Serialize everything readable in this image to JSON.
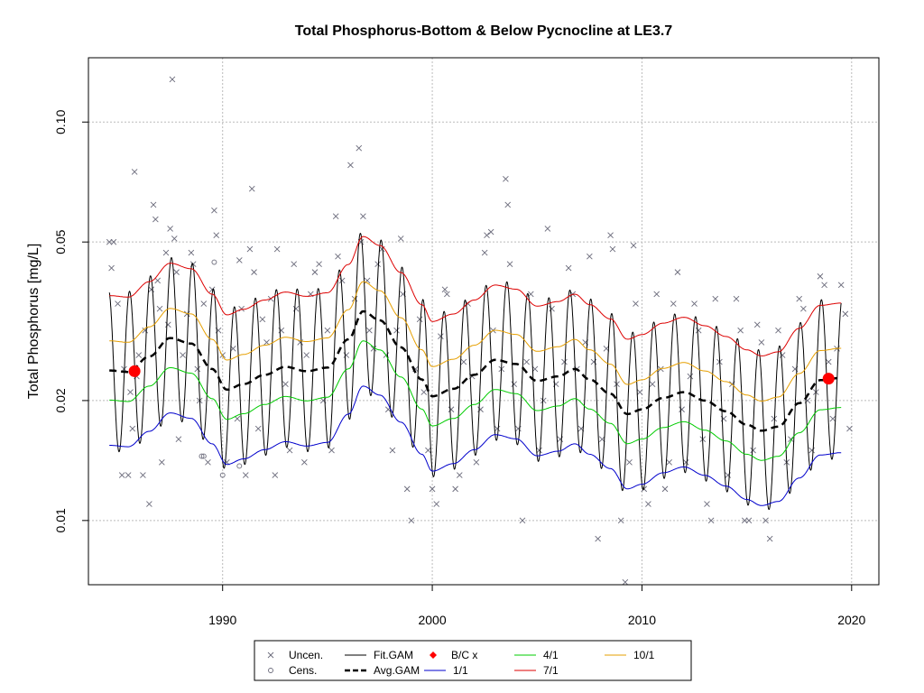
{
  "chart_data": {
    "type": "line",
    "title": "Total Phosphorus-Bottom & Below Pycnocline at LE3.7",
    "xlabel": "",
    "ylabel": "Total Phosphorus [mg/L]",
    "y_scale": "log",
    "xlim": [
      1983.6,
      2021.3
    ],
    "ylim": [
      0.0069,
      0.145
    ],
    "x_ticks": [
      1990,
      2000,
      2010,
      2020
    ],
    "x_tick_labels": [
      "1990",
      "2000",
      "2010",
      "2020"
    ],
    "y_ticks": [
      0.01,
      0.02,
      0.05,
      0.1
    ],
    "y_tick_labels": [
      "0.01",
      "0.02",
      "0.05",
      "0.10"
    ],
    "grid": true,
    "legend_position": "bottom",
    "colors": {
      "fit_gam": "#000000",
      "avg_gam": "#000000",
      "bc": "#ff0000",
      "p1_1": "#0000cc",
      "p4_1": "#00cc00",
      "p7_1": "#dd0000",
      "p10_1": "#e69f00",
      "points": "#6a6a7a",
      "grid": "#bbbbbb"
    },
    "legend": [
      {
        "label": "Uncen.",
        "symbol": "cross",
        "color": "#6a6a7a"
      },
      {
        "label": "Cens.",
        "symbol": "circle",
        "color": "#6a6a7a"
      },
      {
        "label": "Fit.GAM",
        "symbol": "line",
        "color": "#000000"
      },
      {
        "label": "Avg.GAM",
        "symbol": "dashed",
        "color": "#000000"
      },
      {
        "label": "B/C x",
        "symbol": "diamond",
        "color": "#ff0000"
      },
      {
        "label": "1/1",
        "symbol": "line",
        "color": "#0000cc"
      },
      {
        "label": "4/1",
        "symbol": "line",
        "color": "#00cc00"
      },
      {
        "label": "7/1",
        "symbol": "line",
        "color": "#dd0000"
      },
      {
        "label": "10/1",
        "symbol": "line",
        "color": "#e69f00"
      }
    ],
    "bc_points": [
      {
        "x": 1985.8,
        "y": 0.0237
      },
      {
        "x": 2018.9,
        "y": 0.0227
      }
    ],
    "avg_gam": {
      "x": [
        1984.6,
        1985.5,
        1986.5,
        1987.5,
        1988.5,
        1989.5,
        1990.2,
        1991.0,
        1992.0,
        1993.0,
        1994.0,
        1995.0,
        1996.0,
        1996.7,
        1997.5,
        1998.5,
        1999.5,
        2000.0,
        2001.0,
        2002.0,
        2003.0,
        2004.0,
        2005.0,
        2006.0,
        2006.8,
        2007.5,
        2008.5,
        2009.3,
        2010.0,
        2011.0,
        2012.0,
        2013.0,
        2014.0,
        2015.0,
        2015.7,
        2016.5,
        2017.5,
        2018.5,
        2019.5
      ],
      "y": [
        0.0238,
        0.0236,
        0.0258,
        0.0287,
        0.0278,
        0.024,
        0.0213,
        0.022,
        0.0232,
        0.0243,
        0.0237,
        0.0242,
        0.0285,
        0.0335,
        0.0318,
        0.0272,
        0.0226,
        0.0205,
        0.0214,
        0.0232,
        0.0253,
        0.0247,
        0.0224,
        0.023,
        0.024,
        0.0226,
        0.0208,
        0.0185,
        0.019,
        0.0203,
        0.021,
        0.02,
        0.0188,
        0.0174,
        0.0168,
        0.0172,
        0.0197,
        0.0225,
        0.0228
      ]
    },
    "fit_gam": {
      "description_free": true,
      "peak_day_of_year": 0.56,
      "amplitude_log_ratio": 0.93
    },
    "observations_uncensored": [
      [
        1984.6,
        0.05
      ],
      [
        1984.7,
        0.043
      ],
      [
        1984.8,
        0.05
      ],
      [
        1985.0,
        0.035
      ],
      [
        1985.2,
        0.013
      ],
      [
        1985.3,
        0.024
      ],
      [
        1985.5,
        0.013
      ],
      [
        1985.6,
        0.021
      ],
      [
        1985.7,
        0.017
      ],
      [
        1985.8,
        0.075
      ],
      [
        1985.9,
        0.023
      ],
      [
        1986.0,
        0.026
      ],
      [
        1986.2,
        0.013
      ],
      [
        1986.3,
        0.03
      ],
      [
        1986.5,
        0.011
      ],
      [
        1986.6,
        0.038
      ],
      [
        1986.7,
        0.062
      ],
      [
        1986.8,
        0.057
      ],
      [
        1986.9,
        0.04
      ],
      [
        1987.0,
        0.034
      ],
      [
        1987.1,
        0.014
      ],
      [
        1987.3,
        0.047
      ],
      [
        1987.4,
        0.031
      ],
      [
        1987.5,
        0.054
      ],
      [
        1987.6,
        0.128
      ],
      [
        1987.7,
        0.051
      ],
      [
        1987.8,
        0.042
      ],
      [
        1987.9,
        0.016
      ],
      [
        1988.1,
        0.026
      ],
      [
        1988.3,
        0.033
      ],
      [
        1988.5,
        0.047
      ],
      [
        1988.6,
        0.044
      ],
      [
        1988.8,
        0.024
      ],
      [
        1988.9,
        0.02
      ],
      [
        1989.1,
        0.035
      ],
      [
        1989.3,
        0.014
      ],
      [
        1989.5,
        0.038
      ],
      [
        1989.6,
        0.06
      ],
      [
        1989.7,
        0.052
      ],
      [
        1989.8,
        0.03
      ],
      [
        1990.0,
        0.026
      ],
      [
        1990.2,
        0.014
      ],
      [
        1990.5,
        0.027
      ],
      [
        1990.7,
        0.018
      ],
      [
        1990.8,
        0.045
      ],
      [
        1990.9,
        0.034
      ],
      [
        1991.1,
        0.013
      ],
      [
        1991.3,
        0.048
      ],
      [
        1991.4,
        0.068
      ],
      [
        1991.5,
        0.042
      ],
      [
        1991.7,
        0.017
      ],
      [
        1991.9,
        0.032
      ],
      [
        1992.1,
        0.028
      ],
      [
        1992.3,
        0.036
      ],
      [
        1992.5,
        0.013
      ],
      [
        1992.6,
        0.048
      ],
      [
        1992.8,
        0.03
      ],
      [
        1993.0,
        0.022
      ],
      [
        1993.2,
        0.015
      ],
      [
        1993.4,
        0.044
      ],
      [
        1993.5,
        0.034
      ],
      [
        1993.7,
        0.028
      ],
      [
        1993.9,
        0.014
      ],
      [
        1994.0,
        0.026
      ],
      [
        1994.2,
        0.037
      ],
      [
        1994.4,
        0.042
      ],
      [
        1994.6,
        0.044
      ],
      [
        1994.8,
        0.02
      ],
      [
        1995.0,
        0.03
      ],
      [
        1995.2,
        0.015
      ],
      [
        1995.4,
        0.058
      ],
      [
        1995.5,
        0.046
      ],
      [
        1995.7,
        0.04
      ],
      [
        1995.9,
        0.026
      ],
      [
        1996.1,
        0.078
      ],
      [
        1996.3,
        0.036
      ],
      [
        1996.5,
        0.086
      ],
      [
        1996.6,
        0.05
      ],
      [
        1996.7,
        0.058
      ],
      [
        1996.9,
        0.04
      ],
      [
        1997.0,
        0.03
      ],
      [
        1997.2,
        0.027
      ],
      [
        1997.4,
        0.044
      ],
      [
        1997.6,
        0.048
      ],
      [
        1997.8,
        0.026
      ],
      [
        1997.9,
        0.019
      ],
      [
        1998.1,
        0.015
      ],
      [
        1998.3,
        0.03
      ],
      [
        1998.5,
        0.051
      ],
      [
        1998.6,
        0.037
      ],
      [
        1998.8,
        0.012
      ],
      [
        1999.0,
        0.01
      ],
      [
        1999.2,
        0.024
      ],
      [
        1999.4,
        0.032
      ],
      [
        1999.6,
        0.021
      ],
      [
        1999.8,
        0.015
      ],
      [
        2000.0,
        0.012
      ],
      [
        2000.2,
        0.011
      ],
      [
        2000.4,
        0.029
      ],
      [
        2000.6,
        0.038
      ],
      [
        2000.7,
        0.037
      ],
      [
        2000.9,
        0.019
      ],
      [
        2001.1,
        0.012
      ],
      [
        2001.3,
        0.013
      ],
      [
        2001.5,
        0.025
      ],
      [
        2001.7,
        0.035
      ],
      [
        2001.9,
        0.023
      ],
      [
        2002.1,
        0.014
      ],
      [
        2002.3,
        0.019
      ],
      [
        2002.5,
        0.047
      ],
      [
        2002.6,
        0.052
      ],
      [
        2002.8,
        0.053
      ],
      [
        2002.9,
        0.03
      ],
      [
        2003.1,
        0.017
      ],
      [
        2003.3,
        0.024
      ],
      [
        2003.5,
        0.072
      ],
      [
        2003.6,
        0.062
      ],
      [
        2003.7,
        0.044
      ],
      [
        2003.9,
        0.022
      ],
      [
        2004.1,
        0.017
      ],
      [
        2004.3,
        0.01
      ],
      [
        2004.5,
        0.025
      ],
      [
        2004.7,
        0.037
      ],
      [
        2004.9,
        0.024
      ],
      [
        2005.1,
        0.015
      ],
      [
        2005.3,
        0.02
      ],
      [
        2005.5,
        0.054
      ],
      [
        2005.7,
        0.034
      ],
      [
        2005.9,
        0.022
      ],
      [
        2006.1,
        0.016
      ],
      [
        2006.3,
        0.025
      ],
      [
        2006.5,
        0.043
      ],
      [
        2006.7,
        0.037
      ],
      [
        2006.9,
        0.024
      ],
      [
        2007.1,
        0.017
      ],
      [
        2007.3,
        0.028
      ],
      [
        2007.5,
        0.046
      ],
      [
        2007.7,
        0.025
      ],
      [
        2007.9,
        0.009
      ],
      [
        2008.1,
        0.016
      ],
      [
        2008.3,
        0.027
      ],
      [
        2008.5,
        0.052
      ],
      [
        2008.6,
        0.048
      ],
      [
        2008.8,
        0.022
      ],
      [
        2009.0,
        0.01
      ],
      [
        2009.2,
        0.007
      ],
      [
        2009.4,
        0.014
      ],
      [
        2009.6,
        0.049
      ],
      [
        2009.7,
        0.035
      ],
      [
        2009.9,
        0.021
      ],
      [
        2010.1,
        0.012
      ],
      [
        2010.3,
        0.011
      ],
      [
        2010.5,
        0.022
      ],
      [
        2010.7,
        0.037
      ],
      [
        2010.9,
        0.024
      ],
      [
        2011.1,
        0.012
      ],
      [
        2011.3,
        0.014
      ],
      [
        2011.5,
        0.035
      ],
      [
        2011.7,
        0.042
      ],
      [
        2011.9,
        0.019
      ],
      [
        2012.1,
        0.014
      ],
      [
        2012.3,
        0.023
      ],
      [
        2012.5,
        0.035
      ],
      [
        2012.7,
        0.03
      ],
      [
        2012.9,
        0.016
      ],
      [
        2013.1,
        0.011
      ],
      [
        2013.3,
        0.01
      ],
      [
        2013.5,
        0.036
      ],
      [
        2013.7,
        0.025
      ],
      [
        2013.9,
        0.018
      ],
      [
        2014.1,
        0.013
      ],
      [
        2014.3,
        0.022
      ],
      [
        2014.5,
        0.036
      ],
      [
        2014.7,
        0.03
      ],
      [
        2014.9,
        0.01
      ],
      [
        2015.1,
        0.01
      ],
      [
        2015.3,
        0.015
      ],
      [
        2015.5,
        0.031
      ],
      [
        2015.7,
        0.028
      ],
      [
        2015.9,
        0.01
      ],
      [
        2016.1,
        0.009
      ],
      [
        2016.3,
        0.018
      ],
      [
        2016.5,
        0.03
      ],
      [
        2016.7,
        0.026
      ],
      [
        2016.9,
        0.014
      ],
      [
        2017.1,
        0.016
      ],
      [
        2017.3,
        0.024
      ],
      [
        2017.5,
        0.036
      ],
      [
        2017.7,
        0.034
      ],
      [
        2017.9,
        0.02
      ],
      [
        2018.1,
        0.015
      ],
      [
        2018.3,
        0.021
      ],
      [
        2018.5,
        0.041
      ],
      [
        2018.7,
        0.039
      ],
      [
        2018.9,
        0.025
      ],
      [
        2019.1,
        0.018
      ],
      [
        2019.3,
        0.027
      ],
      [
        2019.5,
        0.039
      ],
      [
        2019.7,
        0.033
      ],
      [
        2019.9,
        0.017
      ]
    ],
    "observations_censored": [
      [
        1989.0,
        0.0145
      ],
      [
        1989.1,
        0.0145
      ],
      [
        1989.6,
        0.0445
      ],
      [
        1990.0,
        0.013
      ],
      [
        1990.8,
        0.0137
      ]
    ]
  }
}
